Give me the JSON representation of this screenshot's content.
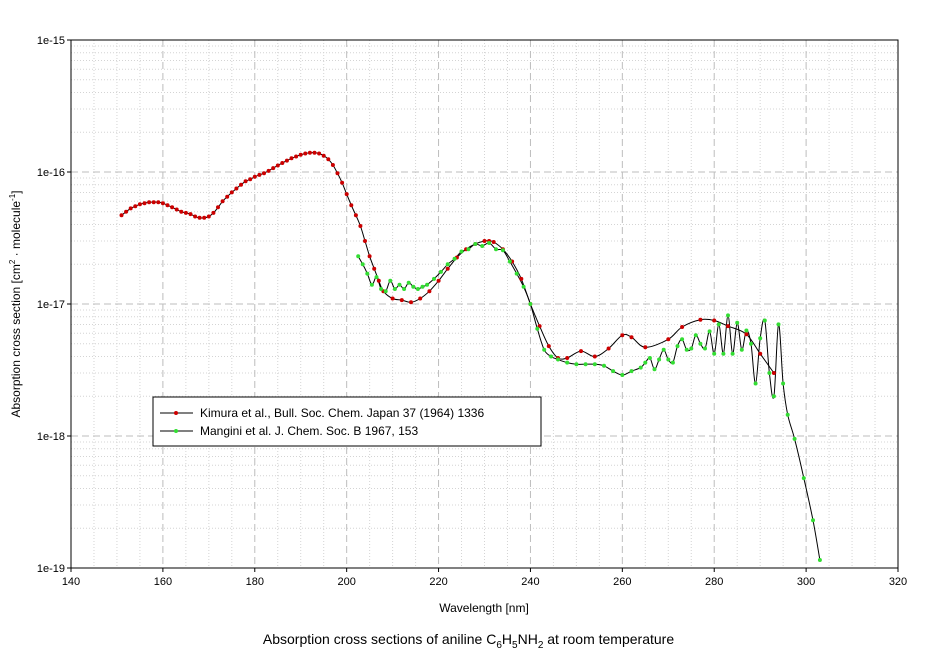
{
  "chart_data": {
    "type": "line",
    "xlabel": "Wavelength [nm]",
    "ylabel": {
      "prefix": "Absorption cross section [cm",
      "sup1": "2",
      "mid": " · molecule",
      "sup2": "-1",
      "suffix": "]"
    },
    "xlim": [
      140,
      320
    ],
    "ylim": [
      1e-19,
      1e-15
    ],
    "y_scale": "log",
    "grid": true,
    "legend_position": "lower-left",
    "x_ticks": [
      "140",
      "160",
      "180",
      "200",
      "220",
      "240",
      "260",
      "280",
      "300",
      "320"
    ],
    "y_ticks": [
      "1e-19",
      "1e-18",
      "1e-17",
      "1e-16",
      "1e-15"
    ],
    "series": [
      {
        "name": "Kimura et al., Bull. Soc. Chem. Japan 37 (1964) 1336",
        "color": "#cc0000",
        "line_color": "#000000",
        "x": [
          151,
          152,
          153,
          154,
          155,
          156,
          157,
          158,
          159,
          160,
          161,
          162,
          163,
          164,
          165,
          166,
          167,
          168,
          169,
          170,
          171,
          172,
          173,
          174,
          175,
          176,
          177,
          178,
          179,
          180,
          181,
          182,
          183,
          184,
          185,
          186,
          187,
          188,
          189,
          190,
          191,
          192,
          193,
          194,
          195,
          196,
          197,
          198,
          199,
          200,
          201,
          202,
          203,
          204,
          205,
          206,
          207,
          208,
          210,
          212,
          214,
          216,
          218,
          220,
          222,
          224,
          226,
          228,
          230,
          231,
          232,
          234,
          236,
          238,
          240,
          242,
          244,
          246,
          248,
          251,
          254,
          257,
          260,
          262,
          265,
          270,
          273,
          277,
          280,
          283,
          287,
          290,
          293
        ],
        "y": [
          4.7e-17,
          5e-17,
          5.3e-17,
          5.5e-17,
          5.7e-17,
          5.8e-17,
          5.9e-17,
          5.9e-17,
          5.9e-17,
          5.8e-17,
          5.6e-17,
          5.4e-17,
          5.2e-17,
          5e-17,
          4.9e-17,
          4.8e-17,
          4.6e-17,
          4.5e-17,
          4.5e-17,
          4.6e-17,
          4.9e-17,
          5.4e-17,
          6e-17,
          6.5e-17,
          7e-17,
          7.5e-17,
          8e-17,
          8.5e-17,
          8.8e-17,
          9.2e-17,
          9.5e-17,
          9.8e-17,
          1.02e-16,
          1.07e-16,
          1.12e-16,
          1.17e-16,
          1.22e-16,
          1.27e-16,
          1.31e-16,
          1.35e-16,
          1.38e-16,
          1.4e-16,
          1.4e-16,
          1.38e-16,
          1.33e-16,
          1.25e-16,
          1.13e-16,
          9.8e-17,
          8.3e-17,
          6.8e-17,
          5.6e-17,
          4.7e-17,
          3.9e-17,
          3e-17,
          2.3e-17,
          1.85e-17,
          1.5e-17,
          1.25e-17,
          1.1e-17,
          1.07e-17,
          1.03e-17,
          1.1e-17,
          1.25e-17,
          1.5e-17,
          1.85e-17,
          2.25e-17,
          2.6e-17,
          2.85e-17,
          3e-17,
          3e-17,
          2.95e-17,
          2.6e-17,
          2.1e-17,
          1.55e-17,
          1e-17,
          6.8e-18,
          4.8e-18,
          3.9e-18,
          3.9e-18,
          4.4e-18,
          4e-18,
          4.6e-18,
          5.8e-18,
          5.6e-18,
          4.7e-18,
          5.4e-18,
          6.7e-18,
          7.6e-18,
          7.5e-18,
          6.8e-18,
          5.9e-18,
          4.2e-18,
          3e-18
        ]
      },
      {
        "name": "Mangini et al. J. Chem. Soc. B 1967, 153",
        "color": "#33dd33",
        "line_color": "#000000",
        "x": [
          202.5,
          203.5,
          204.5,
          205.5,
          206.5,
          207.5,
          208.5,
          209.5,
          210.5,
          211.5,
          212.5,
          213.5,
          214.5,
          215.5,
          216.5,
          217.5,
          219,
          220.5,
          222,
          223.5,
          225,
          226.5,
          228,
          229.5,
          231,
          232.5,
          234,
          235.5,
          237,
          238.5,
          240,
          241.5,
          243,
          244.5,
          246,
          248,
          250,
          252,
          254,
          256,
          258,
          260,
          262,
          264,
          265,
          266,
          267,
          268,
          269,
          270,
          271,
          272,
          273,
          274,
          275,
          276,
          277,
          278,
          279,
          280,
          281,
          282,
          283,
          284,
          285,
          286,
          287,
          288,
          289,
          290,
          291,
          292,
          293,
          294,
          295,
          296,
          297.5,
          299.5,
          301.5,
          303
        ],
        "y": [
          2.3e-17,
          2e-17,
          1.7e-17,
          1.4e-17,
          1.6e-17,
          1.3e-17,
          1.25e-17,
          1.5e-17,
          1.3e-17,
          1.4e-17,
          1.3e-17,
          1.45e-17,
          1.35e-17,
          1.3e-17,
          1.35e-17,
          1.4e-17,
          1.55e-17,
          1.75e-17,
          2e-17,
          2.2e-17,
          2.5e-17,
          2.6e-17,
          2.85e-17,
          2.75e-17,
          2.9e-17,
          2.6e-17,
          2.55e-17,
          2.1e-17,
          1.7e-17,
          1.35e-17,
          1e-17,
          6.5e-18,
          4.5e-18,
          4e-18,
          3.8e-18,
          3.6e-18,
          3.5e-18,
          3.5e-18,
          3.5e-18,
          3.4e-18,
          3.1e-18,
          2.9e-18,
          3.1e-18,
          3.3e-18,
          3.6e-18,
          3.9e-18,
          3.2e-18,
          3.8e-18,
          4.5e-18,
          3.8e-18,
          3.6e-18,
          4.8e-18,
          5.4e-18,
          4.5e-18,
          4.6e-18,
          5.8e-18,
          5e-18,
          4.6e-18,
          6.2e-18,
          4.2e-18,
          7e-18,
          4.2e-18,
          8.2e-18,
          4.2e-18,
          7.2e-18,
          4.5e-18,
          6.3e-18,
          5e-18,
          2.5e-18,
          5.5e-18,
          7.5e-18,
          3e-18,
          2e-18,
          7e-18,
          2.5e-18,
          1.45e-18,
          9.5e-19,
          4.8e-19,
          2.3e-19,
          1.15e-19
        ]
      }
    ],
    "caption": {
      "prefix": "Absorption cross sections of aniline C",
      "s1": "6",
      "mid1": "H",
      "s2": "5",
      "mid2": "NH",
      "s3": "2",
      "suffix": " at room temperature"
    }
  }
}
